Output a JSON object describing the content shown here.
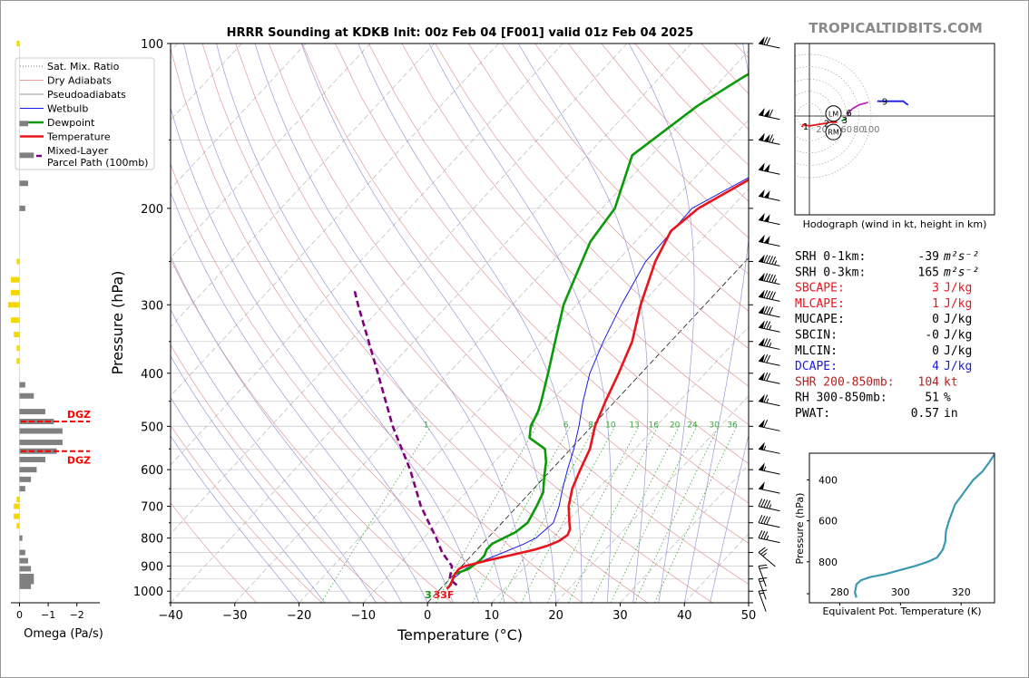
{
  "site": "TROPICALTIDBITS.COM",
  "colors": {
    "temperature": "#e8141c",
    "dewpoint": "#0a9a0a",
    "wetbulb": "#1a1ae6",
    "parcel": "#7f007f",
    "dry_adiabat": "#e39a9a",
    "pseudo_adiabat": "#9a9ad6",
    "mix_ratio": "#39a839",
    "isotherm": "#000000",
    "theta_e": "#3a98b0",
    "dgz": "#ff0000",
    "omega_pos": "#f5d700",
    "omega_neg": "#808080"
  },
  "chart_data": [
    {
      "type": "line",
      "name": "skew-t",
      "title": "HRRR Sounding at KDKB Init: 00z Feb 04 [F001] valid 01z Feb 04 2025",
      "xlabel": "Temperature (°C)",
      "ylabel": "Pressure (hPa)",
      "xlim": [
        -40,
        50
      ],
      "ylim": [
        1050,
        100
      ],
      "log_y": true,
      "x_ticks": [
        -40,
        -30,
        -20,
        -10,
        0,
        10,
        20,
        30,
        40,
        50
      ],
      "x_tick_labels": [
        "−40",
        "−30",
        "−20",
        "−10",
        "0",
        "10",
        "20",
        "30",
        "40",
        "50"
      ],
      "y_ticks": [
        100,
        200,
        300,
        400,
        500,
        600,
        700,
        800,
        900,
        1000
      ],
      "y_tick_labels": [
        "100",
        "200",
        "300",
        "400",
        "500",
        "600",
        "700",
        "800",
        "900",
        "1000"
      ],
      "grid": true,
      "legend_position": "top-left",
      "legend": [
        {
          "label": "Sat. Mix. Ratio",
          "style": "dotted"
        },
        {
          "label": "Dry Adiabats",
          "style": "thin"
        },
        {
          "label": "Pseudoadiabats",
          "style": "thin"
        },
        {
          "label": "Wetbulb",
          "style": "thin"
        },
        {
          "label": "Dewpoint",
          "style": "thick"
        },
        {
          "label": "Temperature",
          "style": "thick"
        },
        {
          "label": "Mixed-Layer\nParcel Path (100mb)",
          "style": "dashed"
        }
      ],
      "mix_ratio_labels": [
        "1",
        "4",
        "6",
        "8",
        "10",
        "13",
        "16",
        "20",
        "24",
        "30",
        "36"
      ],
      "surface_labels": {
        "dewpoint": "3",
        "temperature": "33F"
      },
      "temperature_profile": [
        [
          990,
          1
        ],
        [
          975,
          1
        ],
        [
          950,
          0.5
        ],
        [
          930,
          0.1
        ],
        [
          910,
          0
        ],
        [
          900,
          0.5
        ],
        [
          880,
          3
        ],
        [
          860,
          6
        ],
        [
          840,
          9
        ],
        [
          825,
          10.5
        ],
        [
          810,
          11.5
        ],
        [
          790,
          12
        ],
        [
          770,
          11.5
        ],
        [
          750,
          10.5
        ],
        [
          700,
          8
        ],
        [
          650,
          6
        ],
        [
          600,
          4.5
        ],
        [
          550,
          3
        ],
        [
          500,
          0.5
        ],
        [
          450,
          -1.5
        ],
        [
          400,
          -3.5
        ],
        [
          350,
          -6
        ],
        [
          300,
          -10
        ],
        [
          250,
          -14
        ],
        [
          220,
          -16
        ],
        [
          200,
          -15
        ],
        [
          170,
          -10
        ],
        [
          150,
          -6
        ],
        [
          130,
          -4
        ],
        [
          110,
          -2
        ],
        [
          100,
          -1
        ]
      ],
      "dewpoint_profile": [
        [
          990,
          1
        ],
        [
          975,
          1
        ],
        [
          950,
          0.5
        ],
        [
          930,
          0.1
        ],
        [
          910,
          1.5
        ],
        [
          880,
          2
        ],
        [
          860,
          2
        ],
        [
          840,
          1.5
        ],
        [
          820,
          1.5
        ],
        [
          800,
          2.5
        ],
        [
          780,
          3.5
        ],
        [
          750,
          4
        ],
        [
          700,
          3
        ],
        [
          660,
          2
        ],
        [
          620,
          0
        ],
        [
          580,
          -2
        ],
        [
          550,
          -4
        ],
        [
          525,
          -8
        ],
        [
          500,
          -9.5
        ],
        [
          470,
          -10.5
        ],
        [
          450,
          -11.5
        ],
        [
          400,
          -14.5
        ],
        [
          350,
          -18
        ],
        [
          300,
          -22
        ],
        [
          270,
          -24
        ],
        [
          230,
          -27
        ],
        [
          200,
          -28
        ],
        [
          160,
          -33
        ],
        [
          130,
          -30
        ],
        [
          115,
          -27
        ],
        [
          100,
          -23
        ]
      ],
      "wetbulb_profile": [
        [
          990,
          1
        ],
        [
          950,
          0.5
        ],
        [
          910,
          1
        ],
        [
          880,
          2.5
        ],
        [
          850,
          4.5
        ],
        [
          820,
          6.5
        ],
        [
          800,
          7.5
        ],
        [
          750,
          8
        ],
        [
          700,
          6.5
        ],
        [
          650,
          4.5
        ],
        [
          600,
          2.5
        ],
        [
          550,
          0.5
        ],
        [
          500,
          -2
        ],
        [
          450,
          -5
        ],
        [
          400,
          -8
        ],
        [
          350,
          -10.5
        ],
        [
          300,
          -13
        ],
        [
          250,
          -15.5
        ],
        [
          200,
          -16
        ],
        [
          170,
          -10.5
        ],
        [
          150,
          -6.5
        ],
        [
          130,
          -4.2
        ],
        [
          110,
          -2.2
        ],
        [
          100,
          -1
        ]
      ],
      "parcel_profile": [
        [
          975,
          2
        ],
        [
          950,
          0
        ],
        [
          900,
          -1.5
        ],
        [
          850,
          -5
        ],
        [
          800,
          -8
        ],
        [
          700,
          -15
        ],
        [
          600,
          -22
        ],
        [
          500,
          -31
        ],
        [
          400,
          -41
        ],
        [
          300,
          -54
        ],
        [
          280,
          -57
        ]
      ],
      "wind_barbs": [
        {
          "p": 100,
          "knots": 70
        },
        {
          "p": 135,
          "knots": 110
        },
        {
          "p": 150,
          "knots": 115
        },
        {
          "p": 170,
          "knots": 100
        },
        {
          "p": 190,
          "knots": 100
        },
        {
          "p": 210,
          "knots": 100
        },
        {
          "p": 230,
          "knots": 100
        },
        {
          "p": 250,
          "knots": 95
        },
        {
          "p": 270,
          "knots": 95
        },
        {
          "p": 290,
          "knots": 90
        },
        {
          "p": 310,
          "knots": 80
        },
        {
          "p": 330,
          "knots": 75
        },
        {
          "p": 355,
          "knots": 75
        },
        {
          "p": 380,
          "knots": 70
        },
        {
          "p": 410,
          "knots": 70
        },
        {
          "p": 450,
          "knots": 65
        },
        {
          "p": 500,
          "knots": 60
        },
        {
          "p": 550,
          "knots": 55
        },
        {
          "p": 600,
          "knots": 55
        },
        {
          "p": 650,
          "knots": 50
        },
        {
          "p": 700,
          "knots": 45
        },
        {
          "p": 750,
          "knots": 40
        },
        {
          "p": 800,
          "knots": 35
        },
        {
          "p": 850,
          "knots": 25
        },
        {
          "p": 900,
          "knots": 20
        },
        {
          "p": 950,
          "knots": 15
        },
        {
          "p": 1000,
          "knots": 15
        }
      ]
    },
    {
      "type": "bar",
      "name": "omega",
      "xlabel": "Omega (Pa/s)",
      "xlim": [
        0.3,
        -2.8
      ],
      "x_ticks": [
        0,
        -1,
        -2
      ],
      "x_tick_labels": [
        "0",
        "−1",
        "−2"
      ],
      "dgz_label": "DGZ",
      "dgz_levels_hpa": [
        490,
        555
      ],
      "values": [
        [
          100,
          0.1
        ],
        [
          140,
          -0.3
        ],
        [
          160,
          -0.5
        ],
        [
          180,
          -0.3
        ],
        [
          200,
          -0.2
        ],
        [
          250,
          0.1
        ],
        [
          270,
          0.3
        ],
        [
          285,
          0.3
        ],
        [
          300,
          0.4
        ],
        [
          320,
          0.3
        ],
        [
          340,
          0.2
        ],
        [
          360,
          0.1
        ],
        [
          380,
          0.1
        ],
        [
          420,
          -0.2
        ],
        [
          440,
          -0.5
        ],
        [
          470,
          -0.9
        ],
        [
          490,
          -1.2
        ],
        [
          510,
          -1.5
        ],
        [
          535,
          -1.5
        ],
        [
          555,
          -1.3
        ],
        [
          575,
          -0.9
        ],
        [
          600,
          -0.6
        ],
        [
          625,
          -0.4
        ],
        [
          650,
          -0.2
        ],
        [
          680,
          0.1
        ],
        [
          700,
          0.2
        ],
        [
          730,
          0.2
        ],
        [
          760,
          0.1
        ],
        [
          800,
          -0.1
        ],
        [
          850,
          -0.2
        ],
        [
          880,
          -0.3
        ],
        [
          910,
          -0.4
        ],
        [
          940,
          -0.5
        ],
        [
          960,
          -0.5
        ],
        [
          980,
          -0.4
        ]
      ]
    },
    {
      "type": "line",
      "name": "hodograph",
      "xlabel": "Hodograph (wind in kt, height in km)",
      "ring_labels": [
        "20",
        "40",
        "60",
        "80",
        "100"
      ],
      "storm_motion_labels": [
        "LM",
        "RM"
      ],
      "height_labels": [
        "1",
        "2",
        "3",
        "6",
        "9"
      ],
      "points": [
        [
          -12,
          -18
        ],
        [
          -10,
          -14
        ],
        [
          0,
          -16
        ],
        [
          12,
          -14
        ],
        [
          25,
          -12
        ],
        [
          35,
          -10
        ],
        [
          45,
          -10
        ],
        [
          52,
          -8
        ],
        [
          60,
          -4
        ],
        [
          62,
          0
        ],
        [
          64,
          6
        ],
        [
          70,
          12
        ],
        [
          80,
          18
        ],
        [
          95,
          22
        ],
        [
          110,
          24
        ],
        [
          125,
          24
        ],
        [
          140,
          24
        ],
        [
          152,
          24
        ],
        [
          157,
          20
        ],
        [
          160,
          18
        ]
      ],
      "segment_colors": [
        "#e8141c",
        "#0a9a0a",
        "#c020c0",
        "#1a1ae6"
      ],
      "point_height_labels": [
        [
          -6,
          -16
        ],
        [
          28,
          -11
        ],
        [
          57,
          -6
        ],
        [
          64,
          6
        ],
        [
          122,
          24
        ]
      ],
      "storm_motion": [
        [
          39,
          4
        ],
        [
          39,
          -26
        ]
      ]
    },
    {
      "type": "line",
      "name": "theta-e",
      "xlabel": "Equivalent Pot. Temperature (K)",
      "ylabel": "Pressure (hPa)",
      "xlim": [
        270,
        331
      ],
      "ylim": [
        1000,
        270
      ],
      "x_ticks": [
        280,
        300,
        320
      ],
      "x_tick_labels": [
        "280",
        "300",
        "320"
      ],
      "y_ticks": [
        400,
        600,
        800
      ],
      "y_tick_labels": [
        "400",
        "600",
        "800"
      ],
      "points": [
        [
          285.5,
          975
        ],
        [
          285,
          950
        ],
        [
          285.5,
          910
        ],
        [
          287,
          890
        ],
        [
          290,
          875
        ],
        [
          295,
          860
        ],
        [
          300,
          840
        ],
        [
          305,
          820
        ],
        [
          309,
          800
        ],
        [
          312,
          780
        ],
        [
          313,
          760
        ],
        [
          314,
          740
        ],
        [
          314.8,
          700
        ],
        [
          315,
          650
        ],
        [
          316,
          600
        ],
        [
          317,
          560
        ],
        [
          318,
          520
        ],
        [
          320,
          480
        ],
        [
          322,
          440
        ],
        [
          324,
          400
        ],
        [
          327,
          360
        ],
        [
          329,
          320
        ],
        [
          331,
          275
        ]
      ]
    }
  ],
  "stats": [
    {
      "label": "SRH 0-1km:",
      "value": "-39",
      "unit": "m²s⁻²",
      "color": "#000000"
    },
    {
      "label": "SRH 0-3km:",
      "value": "165",
      "unit": "m²s⁻²",
      "color": "#000000"
    },
    {
      "label": "SBCAPE:",
      "value": "3",
      "unit": "J/kg",
      "color": "#e8141c"
    },
    {
      "label": "MLCAPE:",
      "value": "1",
      "unit": "J/kg",
      "color": "#e8141c"
    },
    {
      "label": "MUCAPE:",
      "value": "0",
      "unit": "J/kg",
      "color": "#000000"
    },
    {
      "label": "SBCIN:",
      "value": "-0",
      "unit": "J/kg",
      "color": "#000000"
    },
    {
      "label": "MLCIN:",
      "value": "0",
      "unit": "J/kg",
      "color": "#000000"
    },
    {
      "label": "DCAPE:",
      "value": "4",
      "unit": "J/kg",
      "color": "#1a1ae6"
    },
    {
      "label": "SHR 200-850mb:",
      "value": "104",
      "unit": "kt",
      "color": "#b22222"
    },
    {
      "label": "RH 300-850mb:",
      "value": "51",
      "unit": "%",
      "color": "#000000"
    },
    {
      "label": "PWAT:",
      "value": "0.57",
      "unit": "in",
      "color": "#000000"
    }
  ]
}
